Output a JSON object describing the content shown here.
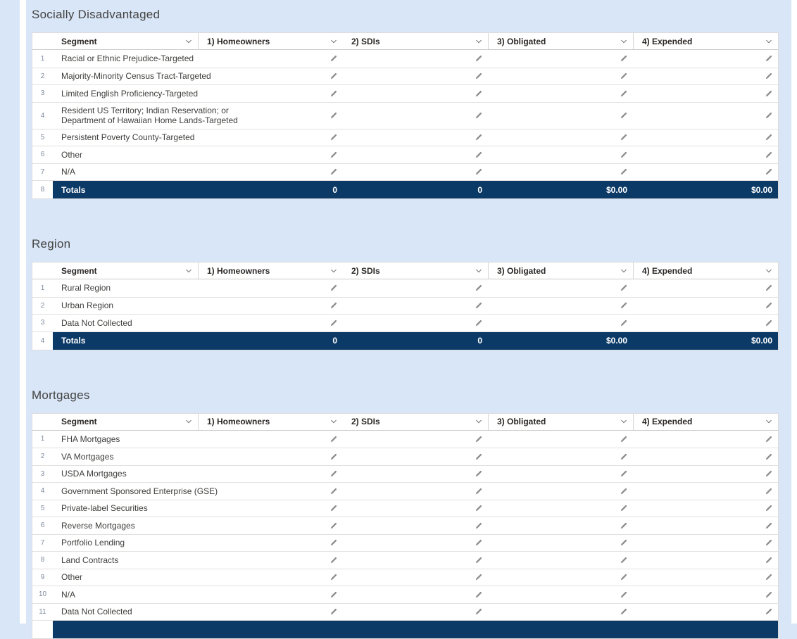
{
  "theme": {
    "page_background": "#d8e6f8",
    "table_background": "#ffffff",
    "totals_bar_color": "#0c3a66",
    "border_color": "#dddbda",
    "header_text_color": "#2b2826",
    "label_text_color": "#3e3e3c",
    "row_number_color": "#7d8a9d",
    "totals_text_color": "#ffffff"
  },
  "icons": {
    "column_menu": "chevron-down-icon",
    "inline_edit": "pencil-icon"
  },
  "columns": [
    {
      "label": "Segment"
    },
    {
      "label": "1) Homeowners"
    },
    {
      "label": "2) SDIs"
    },
    {
      "label": "3) Obligated"
    },
    {
      "label": "4) Expended"
    }
  ],
  "sections": [
    {
      "id": "socially-disadvantaged",
      "title": "Socially Disadvantaged",
      "rows": [
        {
          "num": "1",
          "label": "Racial or Ethnic Prejudice-Targeted"
        },
        {
          "num": "2",
          "label": "Majority-Minority Census Tract-Targeted"
        },
        {
          "num": "3",
          "label": "Limited English Proficiency-Targeted"
        },
        {
          "num": "4",
          "label_lines": [
            "Resident US Territory; Indian Reservation; or",
            "Department of Hawaiian Home Lands-Targeted"
          ]
        },
        {
          "num": "5",
          "label": "Persistent Poverty County-Targeted"
        },
        {
          "num": "6",
          "label": "Other"
        },
        {
          "num": "7",
          "label": "N/A"
        }
      ],
      "totals": {
        "num": "8",
        "label": "Totals",
        "values": [
          "0",
          "0",
          "$0.00",
          "$0.00"
        ]
      }
    },
    {
      "id": "region",
      "title": "Region",
      "rows": [
        {
          "num": "1",
          "label": "Rural Region"
        },
        {
          "num": "2",
          "label": "Urban Region"
        },
        {
          "num": "3",
          "label": "Data Not Collected"
        }
      ],
      "totals": {
        "num": "4",
        "label": "Totals",
        "values": [
          "0",
          "0",
          "$0.00",
          "$0.00"
        ]
      }
    },
    {
      "id": "mortgages",
      "title": "Mortgages",
      "rows": [
        {
          "num": "1",
          "label": "FHA Mortgages"
        },
        {
          "num": "2",
          "label": "VA Mortgages"
        },
        {
          "num": "3",
          "label": "USDA Mortgages"
        },
        {
          "num": "4",
          "label": "Government Sponsored Enterprise (GSE)"
        },
        {
          "num": "5",
          "label": "Private-label Securities"
        },
        {
          "num": "6",
          "label": "Reverse Mortgages"
        },
        {
          "num": "7",
          "label": "Portfolio Lending"
        },
        {
          "num": "8",
          "label": "Land Contracts"
        },
        {
          "num": "9",
          "label": "Other"
        },
        {
          "num": "10",
          "label": "N/A"
        },
        {
          "num": "11",
          "label": "Data Not Collected"
        }
      ],
      "totals": {
        "num": "",
        "label": "",
        "values": [
          "",
          "",
          "",
          ""
        ]
      }
    }
  ]
}
